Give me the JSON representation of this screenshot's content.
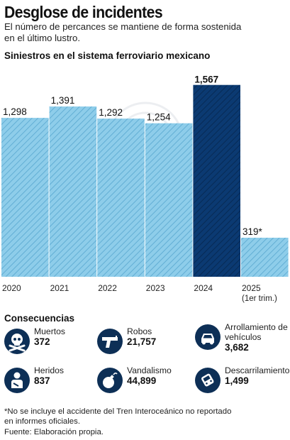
{
  "header": {
    "title": "Desglose de incidentes",
    "subtitle": "El número de percances se mantiene de forma sostenida en el último lustro."
  },
  "chart_data": {
    "type": "bar",
    "title": "Siniestros en el sistema ferroviario mexicano",
    "categories": [
      "2020",
      "2021",
      "2022",
      "2023",
      "2024",
      "2025"
    ],
    "category_sublabels": [
      "",
      "",
      "",
      "",
      "",
      "(1er trim.)"
    ],
    "values": [
      1298,
      1391,
      1292,
      1254,
      1567,
      319
    ],
    "value_labels": [
      "1,298",
      "1,391",
      "1,292",
      "1,254",
      "1,567",
      "319*"
    ],
    "highlight_category": "2024",
    "ylim": [
      0,
      1600
    ],
    "grid": false,
    "colors": {
      "bar": "#8ecdea",
      "bar_hatch": "#62aed4",
      "highlight": "#0b3a72",
      "highlight_hatch": "#072a55"
    }
  },
  "consequences": {
    "title": "Consecuencias",
    "items": [
      {
        "label": "Muertos",
        "value": "372",
        "icon": "skull-crossbones-icon"
      },
      {
        "label": "Robos",
        "value": "21,757",
        "icon": "pistol-icon"
      },
      {
        "label": "Arrollamiento de vehículos",
        "value": "3,682",
        "icon": "car-icon"
      },
      {
        "label": "Heridos",
        "value": "837",
        "icon": "injured-person-icon"
      },
      {
        "label": "Vandalismo",
        "value": "44,899",
        "icon": "bomb-icon"
      },
      {
        "label": "Descarrilamientos",
        "value": "1,499",
        "icon": "derailed-train-icon"
      }
    ]
  },
  "footnote": "*No se incluye el accidente del Tren Interoceánico no reportado en informes oficiales.",
  "source": "Fuente: Elaboración propia."
}
